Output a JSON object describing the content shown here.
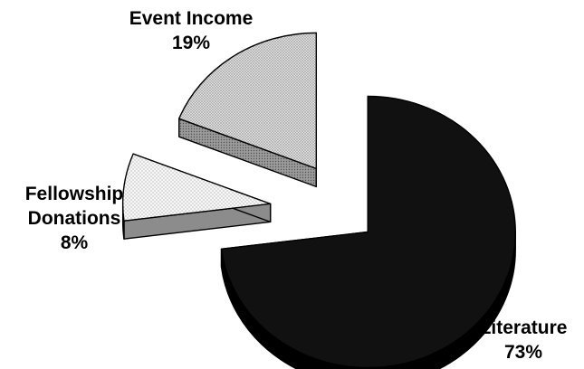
{
  "chart_data": {
    "type": "pie",
    "style": "3d-exploded",
    "slices": [
      {
        "label_lines": [
          "Literature"
        ],
        "percent_label": "73%",
        "value": 73,
        "top_color": "#111111",
        "side_color": "#000000",
        "pattern": "solid"
      },
      {
        "label_lines": [
          "Fellowship",
          "Donations"
        ],
        "percent_label": "8%",
        "value": 8,
        "top_color": "#f3f3f3",
        "side_color": "#8c8c8c",
        "pattern": "fine-dots"
      },
      {
        "label_lines": [
          "Event Income"
        ],
        "percent_label": "19%",
        "value": 19,
        "top_color": "#d6d6d6",
        "side_color": "#7a7a7a",
        "pattern": "dense-dots"
      }
    ],
    "legend": "none"
  }
}
